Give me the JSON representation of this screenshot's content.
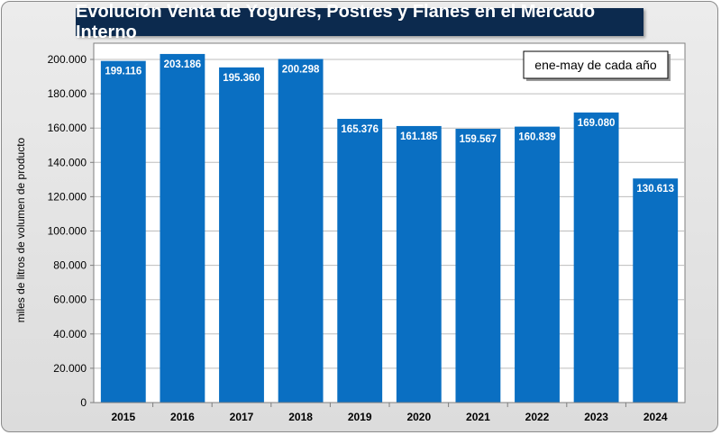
{
  "chart_data": {
    "type": "bar",
    "title": "Evolución Venta de Yogures, Postres y Flanes en el Mercado Interno",
    "annotation": "ene-may de cada año",
    "xlabel": "",
    "ylabel": "miles de litros de volumen de producto",
    "categories": [
      "2015",
      "2016",
      "2017",
      "2018",
      "2019",
      "2020",
      "2021",
      "2022",
      "2023",
      "2024"
    ],
    "values": [
      199116,
      203186,
      195360,
      200298,
      165376,
      161185,
      159567,
      160839,
      169080,
      130613
    ],
    "value_labels": [
      "199.116",
      "203.186",
      "195.360",
      "200.298",
      "165.376",
      "161.185",
      "159.567",
      "160.839",
      "169.080",
      "130.613"
    ],
    "ylim": [
      0,
      200000
    ],
    "yticks": [
      0,
      20000,
      40000,
      60000,
      80000,
      100000,
      120000,
      140000,
      160000,
      180000,
      200000
    ],
    "ytick_labels": [
      "0",
      "20.000",
      "40.000",
      "60.000",
      "80.000",
      "100.000",
      "120.000",
      "140.000",
      "160.000",
      "180.000",
      "200.000"
    ],
    "grid": true,
    "bar_color": "#0a6fc2"
  }
}
